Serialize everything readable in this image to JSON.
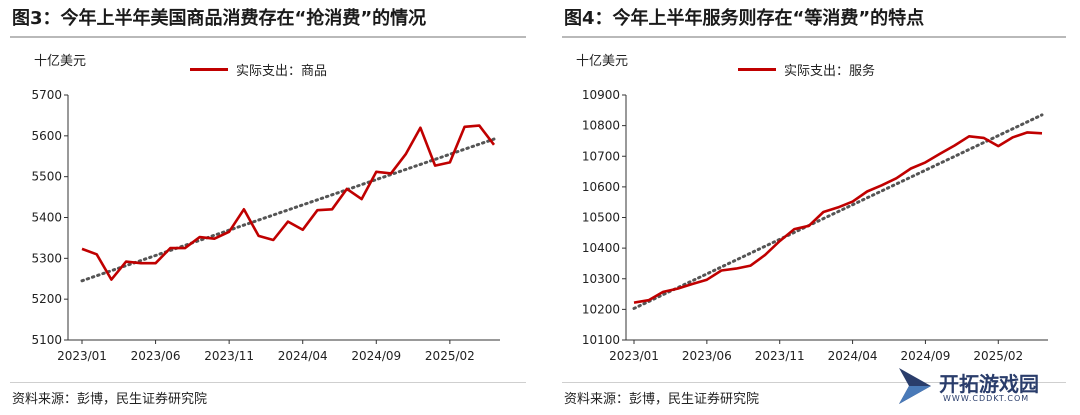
{
  "chart_data": [
    {
      "type": "line",
      "title": "图3：今年上半年美国商品消费存在“抢消费”的情况",
      "unit": "十亿美元",
      "legend": [
        "实际支出：商品"
      ],
      "x_ticks": [
        "2023/01",
        "2023/06",
        "2023/11",
        "2024/04",
        "2024/09",
        "2025/02"
      ],
      "ylim": [
        5100,
        5700
      ],
      "y_ticks": [
        5100,
        5200,
        5300,
        5400,
        5500,
        5600,
        5700
      ],
      "series": [
        {
          "name": "实际支出：商品",
          "color": "#c00000",
          "x": [
            "2023/01",
            "2023/02",
            "2023/03",
            "2023/04",
            "2023/05",
            "2023/06",
            "2023/07",
            "2023/08",
            "2023/09",
            "2023/10",
            "2023/11",
            "2023/12",
            "2024/01",
            "2024/02",
            "2024/03",
            "2024/04",
            "2024/05",
            "2024/06",
            "2024/07",
            "2024/08",
            "2024/09",
            "2024/10",
            "2024/11",
            "2024/12",
            "2025/01",
            "2025/02",
            "2025/03",
            "2025/04",
            "2025/05"
          ],
          "values": [
            5323,
            5310,
            5248,
            5292,
            5288,
            5288,
            5325,
            5325,
            5352,
            5348,
            5365,
            5420,
            5355,
            5345,
            5390,
            5370,
            5418,
            5420,
            5470,
            5445,
            5512,
            5508,
            5555,
            5620,
            5527,
            5535,
            5622,
            5625,
            5578
          ]
        }
      ],
      "trend": {
        "style": "dotted",
        "color": "#555555",
        "start": 5245,
        "end": 5592
      },
      "grid": false
    },
    {
      "type": "line",
      "title": "图4：今年上半年服务则存在“等消费”的特点",
      "unit": "十亿美元",
      "legend": [
        "实际支出：服务"
      ],
      "x_ticks": [
        "2023/01",
        "2023/06",
        "2023/11",
        "2024/04",
        "2024/09",
        "2025/02"
      ],
      "ylim": [
        10100,
        10900
      ],
      "y_ticks": [
        10100,
        10200,
        10300,
        10400,
        10500,
        10600,
        10700,
        10800,
        10900
      ],
      "series": [
        {
          "name": "实际支出：服务",
          "color": "#c00000",
          "x": [
            "2023/01",
            "2023/02",
            "2023/03",
            "2023/04",
            "2023/05",
            "2023/06",
            "2023/07",
            "2023/08",
            "2023/09",
            "2023/10",
            "2023/11",
            "2023/12",
            "2024/01",
            "2024/02",
            "2024/03",
            "2024/04",
            "2024/05",
            "2024/06",
            "2024/07",
            "2024/08",
            "2024/09",
            "2024/10",
            "2024/11",
            "2024/12",
            "2025/01",
            "2025/02",
            "2025/03",
            "2025/04",
            "2025/05"
          ],
          "values": [
            10222,
            10230,
            10257,
            10268,
            10283,
            10297,
            10327,
            10333,
            10343,
            10378,
            10423,
            10462,
            10473,
            10518,
            10533,
            10552,
            10585,
            10605,
            10628,
            10660,
            10680,
            10708,
            10735,
            10765,
            10760,
            10733,
            10762,
            10778,
            10775
          ]
        }
      ],
      "trend": {
        "style": "dotted",
        "color": "#555555",
        "start": 10203,
        "end": 10835
      },
      "grid": false
    }
  ],
  "footer": {
    "source_left": "资料来源：彭博，民生证券研究院",
    "source_right": "资料来源：彭博，民生证券研究院"
  },
  "watermark": {
    "name": "开拓游戏园",
    "sub": "WWW.CDDKT.COM",
    "color": "#2a3d6b"
  }
}
